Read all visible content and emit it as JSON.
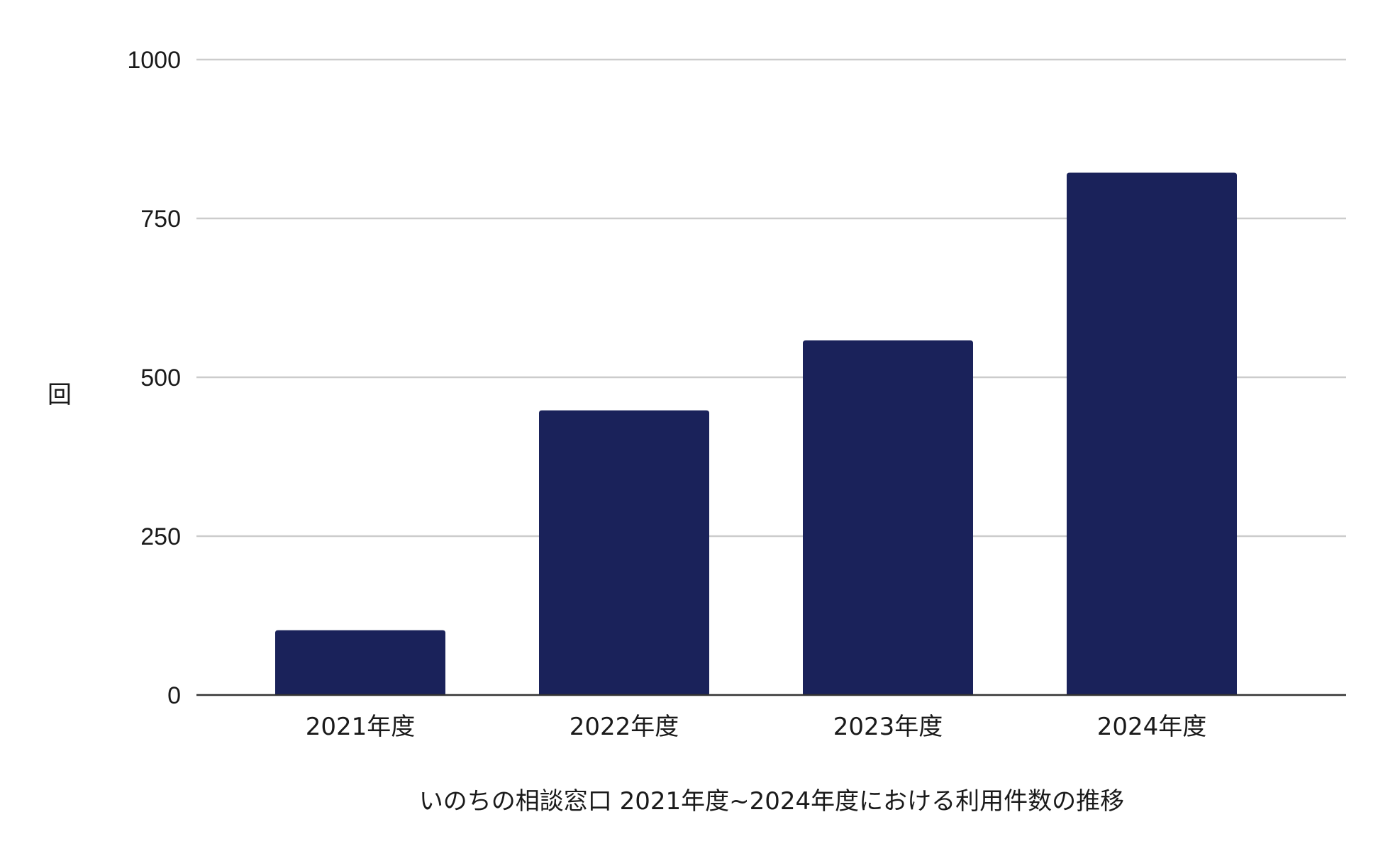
{
  "chart_data": {
    "type": "bar",
    "categories": [
      "2021年度",
      "2022年度",
      "2023年度",
      "2024年度"
    ],
    "values": [
      102,
      448,
      558,
      822
    ],
    "title": "",
    "xlabel": "いのちの相談窓口 2021年度~2024年度における利用件数の推移",
    "ylabel": "回",
    "ylim": [
      0,
      1000
    ],
    "yticks": [
      0,
      250,
      500,
      750,
      1000
    ],
    "grid": true,
    "legend": "none",
    "bar_color": "#1a225a"
  }
}
